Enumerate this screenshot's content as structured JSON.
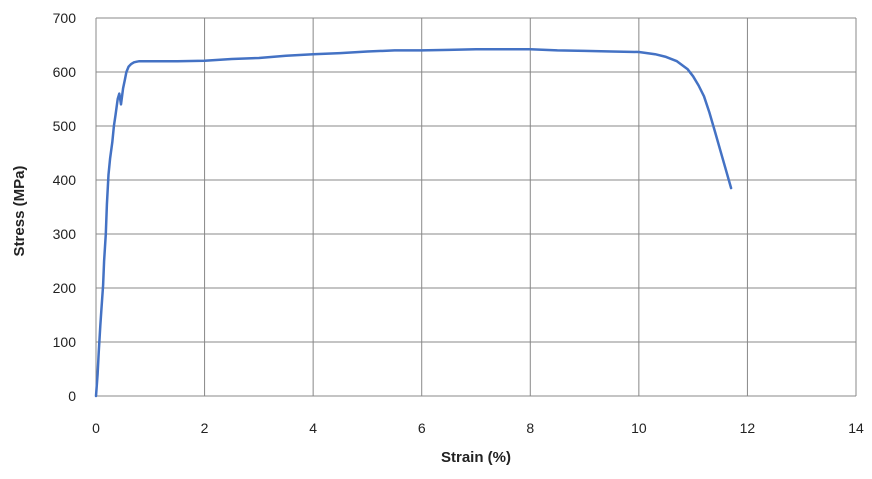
{
  "chart_data": {
    "type": "line",
    "title": "",
    "xlabel": "Strain (%)",
    "ylabel": "Stress (MPa)",
    "xlim": [
      0,
      14
    ],
    "ylim": [
      0,
      700
    ],
    "xticks": [
      0,
      2,
      4,
      6,
      8,
      10,
      12,
      14
    ],
    "yticks": [
      0,
      100,
      200,
      300,
      400,
      500,
      600,
      700
    ],
    "grid": true,
    "legend": "none",
    "series_color": "#4472C4",
    "grid_color": "#888888",
    "series": [
      {
        "x": [
          0.0,
          0.03,
          0.05,
          0.08,
          0.1,
          0.13,
          0.15,
          0.18,
          0.2,
          0.23,
          0.26,
          0.3,
          0.33,
          0.36,
          0.4,
          0.43,
          0.46,
          0.5,
          0.53,
          0.56,
          0.6,
          0.65,
          0.7,
          0.75,
          0.8,
          1.0,
          1.5,
          2.0,
          2.5,
          3.0,
          3.5,
          4.0,
          4.5,
          5.0,
          5.5,
          6.0,
          6.5,
          7.0,
          7.5,
          8.0,
          8.5,
          9.0,
          9.5,
          10.0,
          10.3,
          10.5,
          10.7,
          10.9,
          11.0,
          11.1,
          11.2,
          11.3,
          11.4,
          11.5,
          11.6,
          11.7
        ],
        "y": [
          0,
          40,
          80,
          130,
          160,
          205,
          250,
          300,
          355,
          410,
          440,
          470,
          500,
          520,
          550,
          560,
          540,
          570,
          585,
          600,
          610,
          615,
          618,
          619,
          620,
          620,
          620,
          621,
          624,
          626,
          630,
          633,
          635,
          638,
          640,
          640,
          641,
          642,
          642,
          642,
          640,
          639,
          638,
          637,
          633,
          628,
          620,
          605,
          592,
          575,
          555,
          525,
          490,
          455,
          420,
          385
        ]
      }
    ]
  }
}
